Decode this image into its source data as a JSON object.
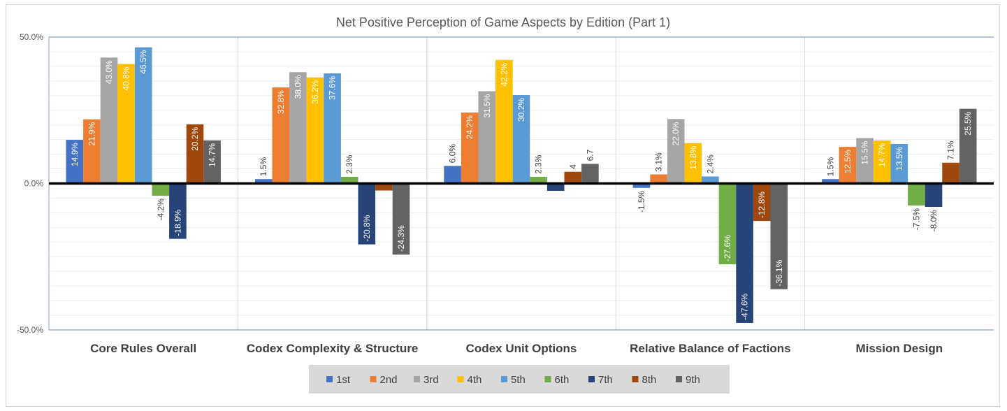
{
  "chart_data": {
    "type": "bar",
    "title": "Net Positive Perception of Game Aspects by Edition (Part 1)",
    "categories": [
      "Core Rules Overall",
      "Codex Complexity & Structure",
      "Codex Unit Options",
      "Relative Balance of Factions",
      "Mission Design"
    ],
    "ylim": [
      -50,
      50
    ],
    "yticks": [
      -50,
      0,
      50
    ],
    "ytick_labels": [
      "-50.0%",
      "0.0%",
      "50.0%"
    ],
    "grid": true,
    "legend_position": "bottom",
    "series": [
      {
        "name": "1st",
        "color": "#4472C4",
        "values": [
          14.9,
          1.5,
          6.0,
          -1.5,
          1.5
        ],
        "labels": [
          "14.9%",
          "1.5%",
          "6.0%",
          "-1.5%",
          "1.5%"
        ]
      },
      {
        "name": "2nd",
        "color": "#ED7D31",
        "values": [
          21.9,
          32.8,
          24.2,
          3.1,
          12.5
        ],
        "labels": [
          "21.9%",
          "32.8%",
          "24.2%",
          "3.1%",
          "12.5%"
        ]
      },
      {
        "name": "3rd",
        "color": "#A5A5A5",
        "values": [
          43.0,
          38.0,
          31.5,
          22.0,
          15.5
        ],
        "labels": [
          "43.0%",
          "38.0%",
          "31.5%",
          "22.0%",
          "15.5%"
        ]
      },
      {
        "name": "4th",
        "color": "#FFC000",
        "values": [
          40.8,
          36.2,
          42.2,
          13.8,
          14.7
        ],
        "labels": [
          "40.8%",
          "36.2%",
          "42.2%",
          "13.8%",
          "14.7%"
        ]
      },
      {
        "name": "5th",
        "color": "#5B9BD5",
        "values": [
          46.5,
          37.6,
          30.2,
          2.4,
          13.5
        ],
        "labels": [
          "46.5%",
          "37.6%",
          "30.2%",
          "2.4%",
          "13.5%"
        ]
      },
      {
        "name": "6th",
        "color": "#70AD47",
        "values": [
          -4.2,
          2.3,
          2.3,
          -27.6,
          -7.5
        ],
        "labels": [
          "-4.2%",
          "2.3%",
          "2.3%",
          "-27.6%",
          "-7.5%"
        ]
      },
      {
        "name": "7th",
        "color": "#264478",
        "values": [
          -18.9,
          -20.8,
          -2.5,
          -47.6,
          -8.0
        ],
        "labels": [
          "-18.9%",
          "-20.8%",
          "",
          "-47.6%",
          "-8.0%"
        ]
      },
      {
        "name": "8th",
        "color": "#9E480E",
        "values": [
          20.2,
          -2.4,
          4.0,
          -12.8,
          7.1
        ],
        "labels": [
          "20.2%",
          "",
          "4",
          "-12.8%",
          "7.1%"
        ]
      },
      {
        "name": "9th",
        "color": "#636363",
        "values": [
          14.7,
          -24.3,
          6.7,
          -36.1,
          25.5
        ],
        "labels": [
          "14.7%",
          "-24.3%",
          "6.7",
          "-36.1%",
          "25.5%"
        ]
      }
    ]
  }
}
